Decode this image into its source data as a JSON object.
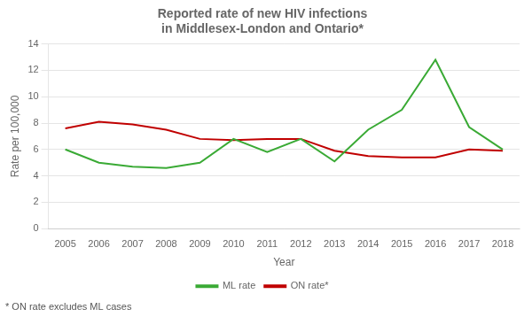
{
  "chart_data": {
    "type": "line",
    "title": [
      "Reported rate of new HIV infections",
      "in Middlesex-London and Ontario*"
    ],
    "x_label": "Year",
    "y_label": "Rate per 100,000",
    "x": [
      2005,
      2006,
      2007,
      2008,
      2009,
      2010,
      2011,
      2012,
      2013,
      2014,
      2015,
      2016,
      2017,
      2018
    ],
    "series": [
      {
        "name": "ML rate",
        "color": "#3aaa35",
        "values": [
          6.0,
          5.0,
          4.7,
          4.6,
          5.0,
          6.8,
          5.8,
          6.8,
          5.1,
          7.5,
          9.0,
          12.8,
          7.7,
          6.0
        ]
      },
      {
        "name": "ON rate*",
        "color": "#c00000",
        "values": [
          7.6,
          8.1,
          7.9,
          7.5,
          6.8,
          6.7,
          6.8,
          6.8,
          5.9,
          5.5,
          5.4,
          5.4,
          6.0,
          5.9
        ]
      }
    ],
    "xlim": [
      2004.5,
      2018.5
    ],
    "xticks": [
      2005,
      2006,
      2007,
      2008,
      2009,
      2010,
      2011,
      2012,
      2013,
      2014,
      2015,
      2016,
      2017,
      2018
    ],
    "ylim": [
      0,
      14
    ],
    "yticks": [
      0,
      2,
      4,
      6,
      8,
      10,
      12,
      14
    ],
    "grid": "y",
    "legend": "bottom",
    "annotations": [
      "* ON rate excludes ML cases"
    ]
  }
}
